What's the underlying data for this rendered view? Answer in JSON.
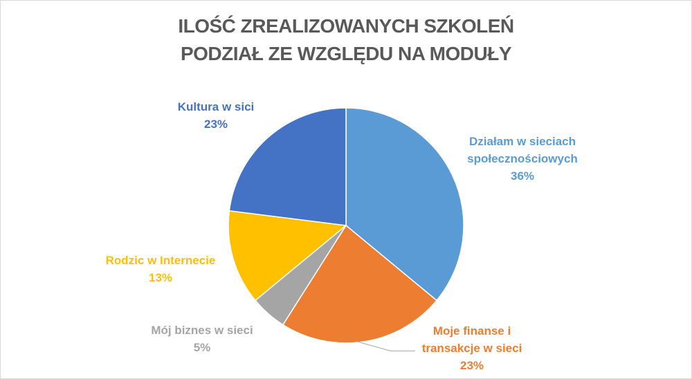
{
  "chart_data": {
    "type": "pie",
    "title": [
      "ILOŚĆ ZREALIZOWANYCH SZKOLEŃ",
      "PODZIAŁ ZE WZGLĘDU NA MODUŁY"
    ],
    "slices": [
      {
        "label": [
          "Działam w sieciach",
          "społecznościowych"
        ],
        "value": 36,
        "value_label": "36%",
        "color": "#5B9BD5"
      },
      {
        "label": [
          "Moje finanse i",
          "transakcje w sieci"
        ],
        "value": 23,
        "value_label": "23%",
        "color": "#ED7D31"
      },
      {
        "label": [
          "Mój biznes w sieci"
        ],
        "value": 5,
        "value_label": "5%",
        "color": "#A5A5A5"
      },
      {
        "label": [
          "Rodzic w Internecie"
        ],
        "value": 13,
        "value_label": "13%",
        "color": "#FFC000"
      },
      {
        "label": [
          "Kultura w sici"
        ],
        "value": 23,
        "value_label": "23%",
        "color": "#4472C4"
      }
    ],
    "legend": "none",
    "start_angle": "12 o'clock, clockwise"
  }
}
